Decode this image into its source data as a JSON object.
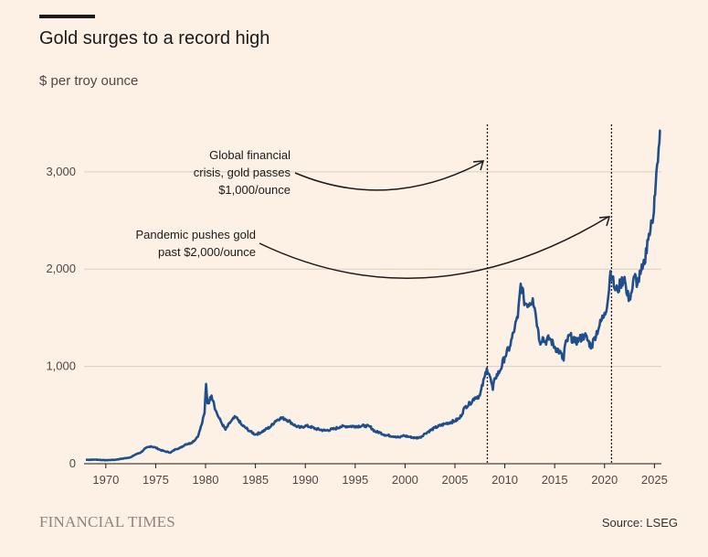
{
  "header": {
    "title": "Gold surges to a record high",
    "subtitle": "$ per troy ounce"
  },
  "footer": {
    "logo": "FINANCIAL TIMES",
    "source": "Source: LSEG"
  },
  "colors": {
    "background": "#fdf1e5",
    "line": "#1e4e8c",
    "grid": "#d8cdc2",
    "text": "#1a1a1a"
  },
  "chart_data": {
    "type": "line",
    "title": "Gold surges to a record high",
    "ylabel": "$ per troy ounce",
    "xlim": [
      1968,
      2025.7
    ],
    "ylim": [
      0,
      3450
    ],
    "x_ticks": [
      1970,
      1975,
      1980,
      1985,
      1990,
      1995,
      2000,
      2005,
      2010,
      2015,
      2020,
      2025
    ],
    "x_tick_labels": [
      "1970",
      "1975",
      "1980",
      "1985",
      "1990",
      "1995",
      "2000",
      "2005",
      "2010",
      "2015",
      "2020",
      "2025"
    ],
    "y_ticks": [
      0,
      1000,
      2000,
      3000
    ],
    "y_tick_labels": [
      "0",
      "1,000",
      "2,000",
      "3,000"
    ],
    "grid": true,
    "series": [
      {
        "name": "",
        "x": [
          1968,
          1969,
          1970,
          1971,
          1972,
          1972.5,
          1973,
          1973.5,
          1974,
          1974.5,
          1975,
          1975.5,
          1976,
          1976.5,
          1977,
          1977.5,
          1978,
          1978.5,
          1979,
          1979.3,
          1979.6,
          1979.9,
          1980.05,
          1980.2,
          1980.4,
          1980.6,
          1980.8,
          1981,
          1981.3,
          1981.6,
          1982,
          1982.5,
          1983,
          1983.3,
          1983.6,
          1984,
          1984.5,
          1985,
          1985.5,
          1986,
          1986.5,
          1987,
          1987.5,
          1988,
          1988.5,
          1989,
          1989.5,
          1990,
          1990.5,
          1991,
          1992,
          1993,
          1993.5,
          1994,
          1995,
          1996,
          1996.5,
          1997,
          1997.5,
          1998,
          1999,
          1999.5,
          1999.8,
          2000,
          2000.5,
          2001,
          2001.5,
          2002,
          2003,
          2004,
          2005,
          2005.5,
          2006,
          2006.5,
          2007,
          2007.5,
          2008,
          2008.2,
          2008.5,
          2008.8,
          2009,
          2009.5,
          2010,
          2010.5,
          2011,
          2011.3,
          2011.6,
          2011.9,
          2012,
          2012.5,
          2012.8,
          2013,
          2013.3,
          2013.5,
          2013.8,
          2014,
          2014.5,
          2015,
          2015.5,
          2015.9,
          2016,
          2016.5,
          2017,
          2017.5,
          2018,
          2018.7,
          2019,
          2019.5,
          2020,
          2020.3,
          2020.6,
          2020.8,
          2021,
          2021.3,
          2021.6,
          2022,
          2022.2,
          2022.5,
          2022.8,
          2023,
          2023.3,
          2023.6,
          2023.8,
          2024,
          2024.3,
          2024.6,
          2024.9,
          2025,
          2025.2,
          2025.35,
          2025.5,
          2025.6
        ],
        "values": [
          40,
          42,
          36,
          41,
          58,
          66,
          97,
          115,
          160,
          180,
          165,
          140,
          125,
          115,
          150,
          165,
          200,
          210,
          250,
          300,
          400,
          520,
          820,
          620,
          650,
          700,
          640,
          550,
          480,
          420,
          350,
          430,
          480,
          450,
          400,
          370,
          330,
          300,
          320,
          350,
          380,
          440,
          470,
          460,
          430,
          390,
          370,
          390,
          380,
          360,
          340,
          360,
          380,
          385,
          385,
          390,
          380,
          330,
          320,
          295,
          280,
          270,
          290,
          285,
          275,
          265,
          270,
          310,
          370,
          410,
          440,
          470,
          580,
          620,
          680,
          700,
          900,
          980,
          900,
          760,
          880,
          950,
          1100,
          1200,
          1400,
          1500,
          1850,
          1700,
          1650,
          1650,
          1700,
          1600,
          1400,
          1250,
          1300,
          1250,
          1290,
          1200,
          1150,
          1060,
          1200,
          1320,
          1250,
          1280,
          1320,
          1200,
          1300,
          1420,
          1550,
          1650,
          1980,
          1900,
          1800,
          1780,
          1850,
          1920,
          1750,
          1700,
          1800,
          1930,
          1850,
          1950,
          2000,
          2050,
          2300,
          2400,
          2550,
          2750,
          3000,
          3100,
          3300,
          3420
        ]
      }
    ],
    "annotations": [
      {
        "lines": [
          "Global financial",
          "crisis, gold passes",
          "$1,000/ounce"
        ],
        "x": 2008.25
      },
      {
        "lines": [
          "Pandemic pushes gold",
          "past $2,000/ounce"
        ],
        "x": 2020.7
      }
    ]
  }
}
